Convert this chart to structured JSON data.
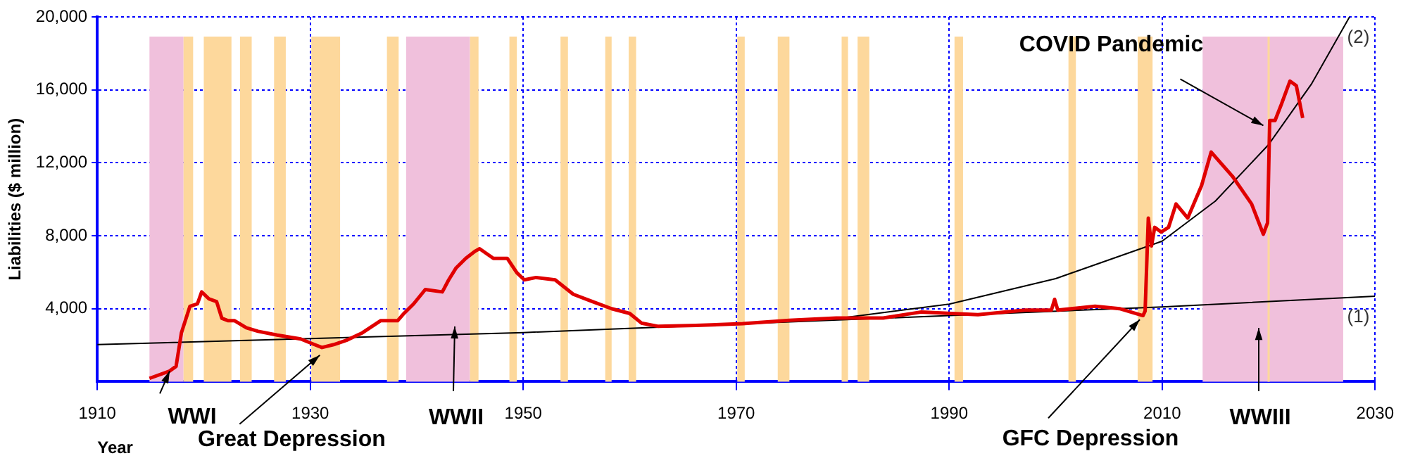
{
  "chart_data": {
    "type": "line",
    "xlabel": "Year",
    "ylabel": "Liabilities ($ million)",
    "xlim": [
      1910,
      2030
    ],
    "xticks": [
      1910,
      1930,
      1950,
      1970,
      1990,
      2010,
      2030
    ],
    "ylim": [
      0,
      20000
    ],
    "yticks": [
      {
        "value": 4000,
        "label": "4,000"
      },
      {
        "value": 8000,
        "label": "8,000"
      },
      {
        "value": 12000,
        "label": "12,000"
      },
      {
        "value": 16000,
        "label": "16,000"
      },
      {
        "value": 20000,
        "label": "20,000"
      }
    ],
    "grid": true,
    "legend": false,
    "marker": "none",
    "line_style": "solid",
    "series": [
      {
        "color": "#e00000",
        "x": [
          1914.9,
          1916.8,
          1917.4,
          1917.9,
          1918.7,
          1919.4,
          1919.8,
          1920.5,
          1921.2,
          1921.7,
          1922.3,
          1922.9,
          1924.0,
          1925.1,
          1926.9,
          1929.1,
          1930.4,
          1931.1,
          1932.2,
          1933.5,
          1934.9,
          1936.6,
          1938.2,
          1938.8,
          1939.7,
          1940.8,
          1942.4,
          1943.0,
          1943.7,
          1944.6,
          1945.5,
          1945.9,
          1947.2,
          1948.5,
          1949.4,
          1950.1,
          1951.2,
          1953.0,
          1954.7,
          1956.5,
          1958.3,
          1960.0,
          1961.1,
          1962.7,
          1966.2,
          1970.6,
          1975.0,
          1979.4,
          1983.8,
          1987.4,
          1992.7,
          1997.1,
          1999.6,
          1999.9,
          2000.2,
          2003.7,
          2006.0,
          2008.2,
          2008.4,
          2008.7,
          2009.0,
          2009.3,
          2009.9,
          2010.6,
          2011.3,
          2012.4,
          2013.7,
          2014.6,
          2016.6,
          2018.4,
          2019.5,
          2019.9,
          2020.1,
          2020.6,
          2021.2,
          2022.0,
          2022.6,
          2023.2
        ],
        "values": [
          180,
          580,
          840,
          2680,
          4130,
          4260,
          4920,
          4530,
          4390,
          3470,
          3340,
          3340,
          2950,
          2760,
          2550,
          2340,
          2030,
          1870,
          2030,
          2290,
          2680,
          3340,
          3340,
          3740,
          4260,
          5050,
          4920,
          5580,
          6240,
          6760,
          7160,
          7290,
          6760,
          6760,
          5970,
          5580,
          5710,
          5580,
          4790,
          4390,
          4000,
          3740,
          3210,
          3030,
          3080,
          3180,
          3360,
          3490,
          3490,
          3820,
          3670,
          3920,
          3920,
          4510,
          3920,
          4130,
          4000,
          3620,
          3870,
          8970,
          7440,
          8460,
          8200,
          8460,
          9740,
          8970,
          10750,
          12590,
          11260,
          9740,
          8080,
          8710,
          14320,
          14320,
          15210,
          16480,
          16230,
          14450
        ]
      },
      {
        "name": "(1)",
        "color": "#000000",
        "x": [
          1910,
          1950,
          1990,
          2010,
          2030
        ],
        "values": [
          2030,
          2690,
          3620,
          4100,
          4680
        ]
      },
      {
        "name": "(2)",
        "color": "#000000",
        "x": [
          1980,
          1990,
          2000,
          2010,
          2015,
          2020,
          2024,
          2027.6
        ],
        "values": [
          3500,
          4250,
          5650,
          7700,
          9900,
          13000,
          16300,
          20000
        ]
      }
    ],
    "bands": [
      {
        "axis": "x",
        "from": 1914.9,
        "to": 1918.1,
        "color": "#f0c0dc"
      },
      {
        "axis": "x",
        "from": 1918.1,
        "to": 1919.0,
        "color": "#fdd89c"
      },
      {
        "axis": "x",
        "from": 1920.0,
        "to": 1922.6,
        "color": "#fdd89c"
      },
      {
        "axis": "x",
        "from": 1923.4,
        "to": 1924.5,
        "color": "#fdd89c"
      },
      {
        "axis": "x",
        "from": 1926.6,
        "to": 1927.7,
        "color": "#fdd89c"
      },
      {
        "axis": "x",
        "from": 1930.1,
        "to": 1932.8,
        "color": "#fdd89c"
      },
      {
        "axis": "x",
        "from": 1937.2,
        "to": 1938.3,
        "color": "#fdd89c"
      },
      {
        "axis": "x",
        "from": 1939.0,
        "to": 1945.0,
        "color": "#f0c0dc"
      },
      {
        "axis": "x",
        "from": 1945.0,
        "to": 1945.8,
        "color": "#fdd89c"
      },
      {
        "axis": "x",
        "from": 1948.7,
        "to": 1949.4,
        "color": "#fdd89c"
      },
      {
        "axis": "x",
        "from": 1953.5,
        "to": 1954.2,
        "color": "#fdd89c"
      },
      {
        "axis": "x",
        "from": 1957.7,
        "to": 1958.3,
        "color": "#fdd89c"
      },
      {
        "axis": "x",
        "from": 1959.9,
        "to": 1960.6,
        "color": "#fdd89c"
      },
      {
        "axis": "x",
        "from": 1970.1,
        "to": 1970.8,
        "color": "#fdd89c"
      },
      {
        "axis": "x",
        "from": 1973.9,
        "to": 1975.0,
        "color": "#fdd89c"
      },
      {
        "axis": "x",
        "from": 1979.9,
        "to": 1980.5,
        "color": "#fdd89c"
      },
      {
        "axis": "x",
        "from": 1981.4,
        "to": 1982.5,
        "color": "#fdd89c"
      },
      {
        "axis": "x",
        "from": 1990.5,
        "to": 1991.3,
        "color": "#fdd89c"
      },
      {
        "axis": "x",
        "from": 2001.2,
        "to": 2001.9,
        "color": "#fdd89c"
      },
      {
        "axis": "x",
        "from": 2007.7,
        "to": 2009.1,
        "color": "#fdd89c"
      },
      {
        "axis": "x",
        "from": 2013.8,
        "to": 2027.0,
        "color": "#f0c0dc"
      },
      {
        "axis": "x",
        "from": 2019.9,
        "to": 2020.1,
        "color": "#fdd89c"
      }
    ],
    "annotations": [
      {
        "text": "WWI",
        "x": 1916.8,
        "y": 580
      },
      {
        "text": "Great Depression",
        "x": 1930.9,
        "y": 1450
      },
      "WWII",
      {
        "text": "GFC Depression",
        "x": 2007.9,
        "y": 3400
      },
      "WWIII",
      {
        "text": "COVID Pandemic",
        "x": 2019.5,
        "y": 14040
      }
    ]
  }
}
